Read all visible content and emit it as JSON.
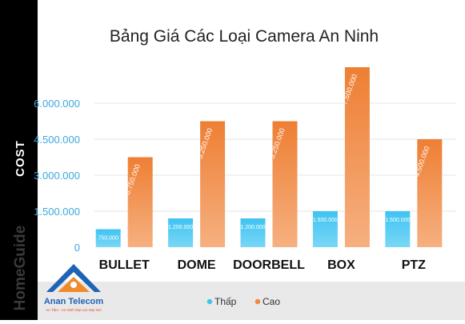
{
  "chart_data": {
    "type": "bar",
    "title": "Bảng Giá Các Loại Camera An Ninh",
    "ylabel": "COST",
    "xlabel": "",
    "categories": [
      "BULLET",
      "DOME",
      "DOORBELL",
      "BOX",
      "PTZ"
    ],
    "series": [
      {
        "name": "Thấp",
        "color": "#3fc4f0",
        "values": [
          750000,
          1200000,
          1200000,
          1500000,
          1500000
        ],
        "labels": [
          "750.000",
          "1.200.000",
          "1.200.000",
          "1.500.000",
          "1.500.000"
        ]
      },
      {
        "name": "Cao",
        "color": "#f0883e",
        "values": [
          3750000,
          5250000,
          5250000,
          7500000,
          4500000
        ],
        "labels": [
          "3.750.000",
          "5.250.000",
          "5.250.000",
          "7.500.000",
          "4.500.000"
        ]
      }
    ],
    "ylim": [
      0,
      7500000
    ],
    "yticks": [
      0,
      1500000,
      3000000,
      4500000,
      6000000
    ],
    "ytick_labels": [
      "0",
      "1.500.000",
      "3.000.000",
      "4.500.000",
      "6.000.000"
    ],
    "grid": true,
    "legend": "bottom"
  },
  "sidebar": {
    "watermark": "HomeGuide"
  },
  "logo": {
    "name": "Anan Telecom",
    "tagline": "An Tâm - An Ninh Mọi Lúc Mọi Nơi"
  }
}
